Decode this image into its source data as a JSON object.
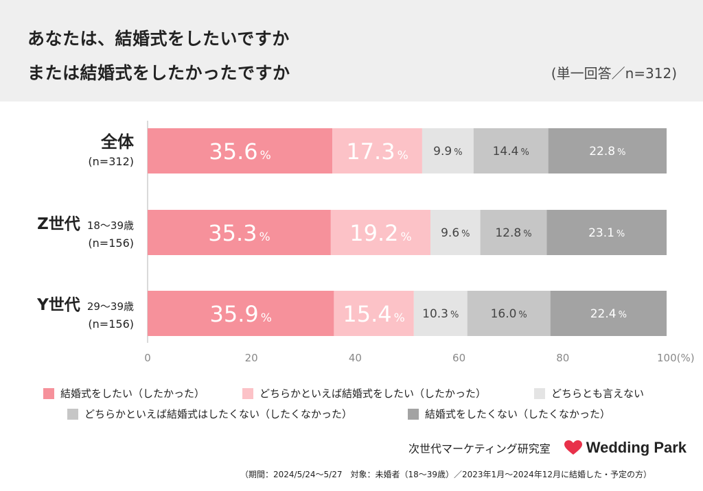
{
  "header": {
    "title_line1": "あなたは、結婚式をしたいですか",
    "title_line2": "または結婚式をしたかったですか",
    "basis": "(単一回答／n=312)"
  },
  "chart_data": {
    "type": "bar",
    "orientation": "horizontal",
    "stacked": true,
    "unit": "%",
    "xlim": [
      0,
      100
    ],
    "xticks": [
      "0",
      "20",
      "40",
      "60",
      "80",
      "100(%)"
    ],
    "categories": [
      {
        "name": "全体",
        "sub": "",
        "n": "(n=312)"
      },
      {
        "name": "Z世代",
        "sub": "18〜39歳",
        "n": "(n=156)"
      },
      {
        "name": "Y世代",
        "sub": "29〜39歳",
        "n": "(n=156)"
      }
    ],
    "series": [
      {
        "name": "結婚式をしたい（したかった）",
        "color": "#f6919b",
        "values": [
          35.6,
          35.3,
          35.9
        ],
        "labels": [
          "35.6",
          "35.3",
          "35.9"
        ],
        "label_color": "#ffffff",
        "label_size": "large"
      },
      {
        "name": "どちらかといえば結婚式をしたい（したかった）",
        "color": "#fcc2c7",
        "values": [
          17.3,
          19.2,
          15.4
        ],
        "labels": [
          "17.3",
          "19.2",
          "15.4"
        ],
        "label_color": "#ffffff",
        "label_size": "large"
      },
      {
        "name": "どちらとも言えない",
        "color": "#e4e4e4",
        "values": [
          9.9,
          9.6,
          10.3
        ],
        "labels": [
          "9.9",
          "9.6",
          "10.3"
        ],
        "label_color": "#444444",
        "label_size": "small"
      },
      {
        "name": "どちらかといえば結婚式はしたくない（したくなかった）",
        "color": "#c6c6c6",
        "values": [
          14.4,
          12.8,
          16.0
        ],
        "labels": [
          "14.4",
          "12.8",
          "16.0"
        ],
        "label_color": "#444444",
        "label_size": "small"
      },
      {
        "name": "結婚式をしたくない（したくなかった）",
        "color": "#a3a3a3",
        "values": [
          22.8,
          23.1,
          22.4
        ],
        "labels": [
          "22.8",
          "23.1",
          "22.4"
        ],
        "label_color": "#ffffff",
        "label_size": "small"
      }
    ],
    "percent_sign": "%"
  },
  "footer": {
    "lab_name": "次世代マーケティング研究室",
    "logo_text": "Wedding Park",
    "logo_color": "#e8314a",
    "note": "（期間：2024/5/24〜5/27　対象：未婚者（18〜39歳）／2023年1月〜2024年12月に結婚した・予定の方）"
  }
}
